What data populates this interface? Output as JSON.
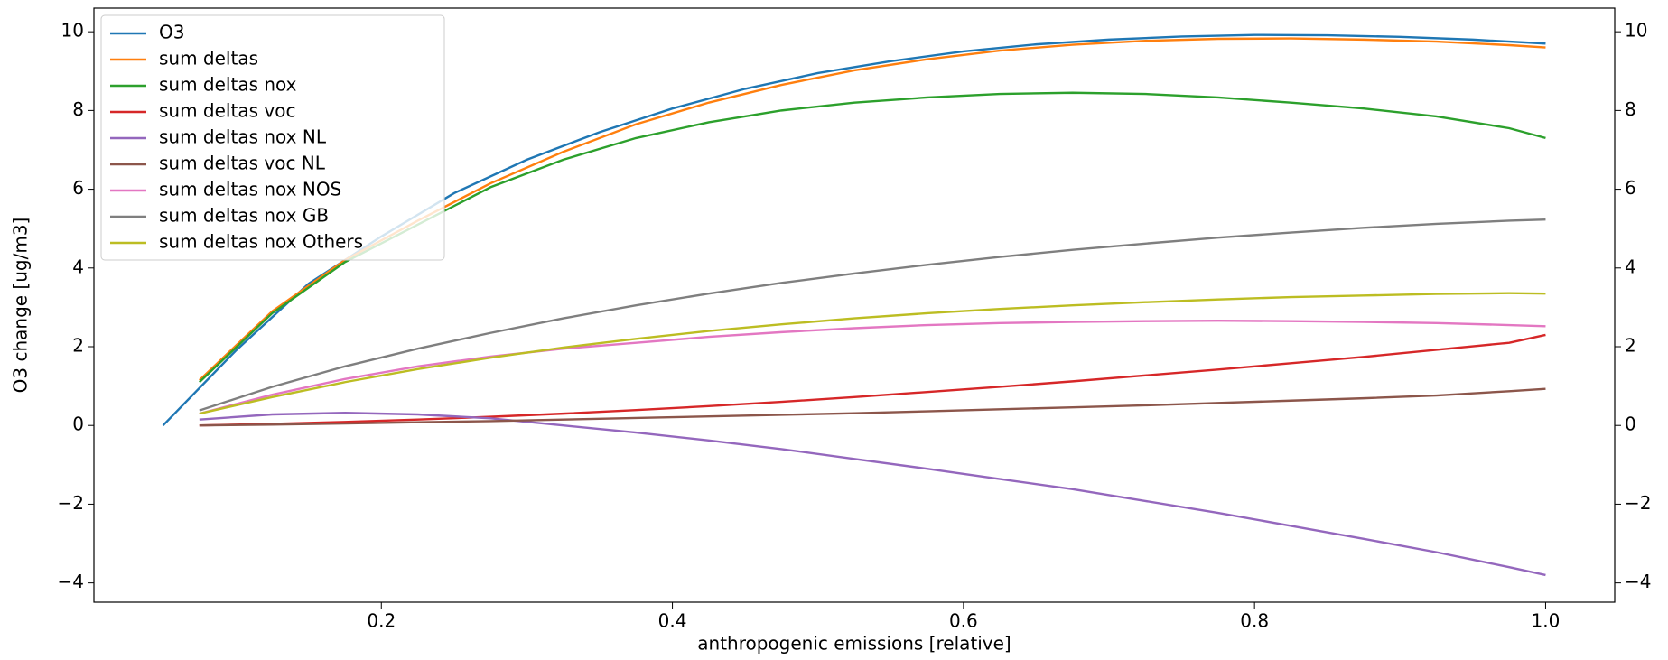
{
  "chart_data": {
    "type": "line",
    "xlabel": "anthropogenic emissions [relative]",
    "ylabel": "O3 change [ug/m3]",
    "xlim": [
      0.0025,
      1.0475
    ],
    "xticks": [
      0.2,
      0.4,
      0.6,
      0.8,
      {
        "value": 1,
        "label": "1.0"
      }
    ],
    "ylim": [
      -4.49,
      10.6
    ],
    "yticks": [
      {
        "value": -4,
        "label": "−4"
      },
      {
        "value": -2,
        "label": "−2"
      },
      0,
      2,
      4,
      6,
      8,
      10
    ],
    "y2lim": [
      -4.49,
      10.6
    ],
    "y2ticks": [
      {
        "value": -4,
        "label": "−4"
      },
      {
        "value": -2,
        "label": "−2"
      },
      0,
      2,
      4,
      6,
      8,
      10
    ],
    "legend": "upper left",
    "series": [
      {
        "name": "O3",
        "color": "#1f77b4",
        "x": [
          0.05,
          0.1,
          0.15,
          0.2,
          0.25,
          0.3,
          0.35,
          0.4,
          0.45,
          0.5,
          0.55,
          0.6,
          0.65,
          0.7,
          0.75,
          0.8,
          0.85,
          0.9,
          0.95,
          1.0
        ],
        "values": [
          0,
          1.9,
          3.6,
          4.8,
          5.9,
          6.75,
          7.45,
          8.05,
          8.55,
          8.95,
          9.25,
          9.5,
          9.68,
          9.8,
          9.88,
          9.92,
          9.91,
          9.87,
          9.8,
          9.7
        ]
      },
      {
        "name": "sum deltas",
        "color": "#ff7f0e",
        "x": [
          0.075,
          0.125,
          0.175,
          0.225,
          0.275,
          0.325,
          0.375,
          0.425,
          0.475,
          0.525,
          0.575,
          0.625,
          0.675,
          0.725,
          0.775,
          0.825,
          0.875,
          0.925,
          0.975,
          1.0
        ],
        "values": [
          1.15,
          2.9,
          4.2,
          5.2,
          6.15,
          6.95,
          7.65,
          8.2,
          8.65,
          9.02,
          9.3,
          9.52,
          9.67,
          9.77,
          9.82,
          9.83,
          9.8,
          9.75,
          9.66,
          9.6
        ]
      },
      {
        "name": "sum deltas nox",
        "color": "#2ca02c",
        "x": [
          0.075,
          0.125,
          0.175,
          0.225,
          0.275,
          0.325,
          0.375,
          0.425,
          0.475,
          0.525,
          0.575,
          0.625,
          0.675,
          0.725,
          0.775,
          0.825,
          0.875,
          0.925,
          0.975,
          1.0
        ],
        "values": [
          1.1,
          2.85,
          4.15,
          5.1,
          6.05,
          6.75,
          7.3,
          7.7,
          8.0,
          8.2,
          8.33,
          8.42,
          8.45,
          8.42,
          8.33,
          8.2,
          8.05,
          7.85,
          7.55,
          7.3
        ]
      },
      {
        "name": "sum deltas voc",
        "color": "#d62728",
        "x": [
          0.075,
          0.125,
          0.175,
          0.225,
          0.275,
          0.325,
          0.375,
          0.425,
          0.475,
          0.525,
          0.575,
          0.625,
          0.675,
          0.725,
          0.775,
          0.825,
          0.875,
          0.925,
          0.975,
          1.0
        ],
        "values": [
          0,
          0.04,
          0.09,
          0.15,
          0.22,
          0.3,
          0.39,
          0.49,
          0.6,
          0.72,
          0.85,
          0.98,
          1.12,
          1.27,
          1.42,
          1.58,
          1.74,
          1.92,
          2.1,
          2.3
        ]
      },
      {
        "name": "sum deltas nox NL",
        "color": "#9467bd",
        "x": [
          0.075,
          0.125,
          0.175,
          0.225,
          0.275,
          0.325,
          0.375,
          0.425,
          0.475,
          0.525,
          0.575,
          0.625,
          0.675,
          0.725,
          0.775,
          0.825,
          0.875,
          0.925,
          0.975,
          1.0
        ],
        "values": [
          0.15,
          0.28,
          0.32,
          0.28,
          0.18,
          0.0,
          -0.18,
          -0.38,
          -0.6,
          -0.85,
          -1.1,
          -1.36,
          -1.62,
          -1.92,
          -2.22,
          -2.55,
          -2.88,
          -3.22,
          -3.6,
          -3.8
        ]
      },
      {
        "name": "sum deltas voc NL",
        "color": "#8c564b",
        "x": [
          0.075,
          0.125,
          0.175,
          0.225,
          0.275,
          0.325,
          0.375,
          0.425,
          0.475,
          0.525,
          0.575,
          0.625,
          0.675,
          0.725,
          0.775,
          0.825,
          0.875,
          0.925,
          0.975,
          1.0
        ],
        "values": [
          0,
          0.02,
          0.05,
          0.08,
          0.11,
          0.15,
          0.19,
          0.23,
          0.27,
          0.31,
          0.36,
          0.41,
          0.46,
          0.51,
          0.57,
          0.63,
          0.69,
          0.76,
          0.87,
          0.93
        ]
      },
      {
        "name": "sum deltas nox NOS",
        "color": "#e377c2",
        "x": [
          0.075,
          0.125,
          0.175,
          0.225,
          0.275,
          0.325,
          0.375,
          0.425,
          0.475,
          0.525,
          0.575,
          0.625,
          0.675,
          0.725,
          0.775,
          0.825,
          0.875,
          0.925,
          0.975,
          1.0
        ],
        "values": [
          0.3,
          0.78,
          1.18,
          1.5,
          1.75,
          1.95,
          2.1,
          2.25,
          2.37,
          2.47,
          2.55,
          2.6,
          2.63,
          2.65,
          2.66,
          2.65,
          2.63,
          2.6,
          2.55,
          2.52
        ]
      },
      {
        "name": "sum deltas nox GB",
        "color": "#7f7f7f",
        "x": [
          0.075,
          0.125,
          0.175,
          0.225,
          0.275,
          0.325,
          0.375,
          0.425,
          0.475,
          0.525,
          0.575,
          0.625,
          0.675,
          0.725,
          0.775,
          0.825,
          0.875,
          0.925,
          0.975,
          1.0
        ],
        "values": [
          0.38,
          0.98,
          1.5,
          1.95,
          2.35,
          2.72,
          3.05,
          3.35,
          3.62,
          3.86,
          4.08,
          4.28,
          4.46,
          4.62,
          4.77,
          4.9,
          5.02,
          5.12,
          5.2,
          5.23
        ]
      },
      {
        "name": "sum deltas nox Others",
        "color": "#bcbd22",
        "x": [
          0.075,
          0.125,
          0.175,
          0.225,
          0.275,
          0.325,
          0.375,
          0.425,
          0.475,
          0.525,
          0.575,
          0.625,
          0.675,
          0.725,
          0.775,
          0.825,
          0.875,
          0.925,
          0.975,
          1.0
        ],
        "values": [
          0.3,
          0.72,
          1.1,
          1.43,
          1.72,
          1.98,
          2.2,
          2.4,
          2.57,
          2.72,
          2.85,
          2.96,
          3.05,
          3.13,
          3.2,
          3.26,
          3.3,
          3.34,
          3.36,
          3.35
        ]
      }
    ]
  }
}
